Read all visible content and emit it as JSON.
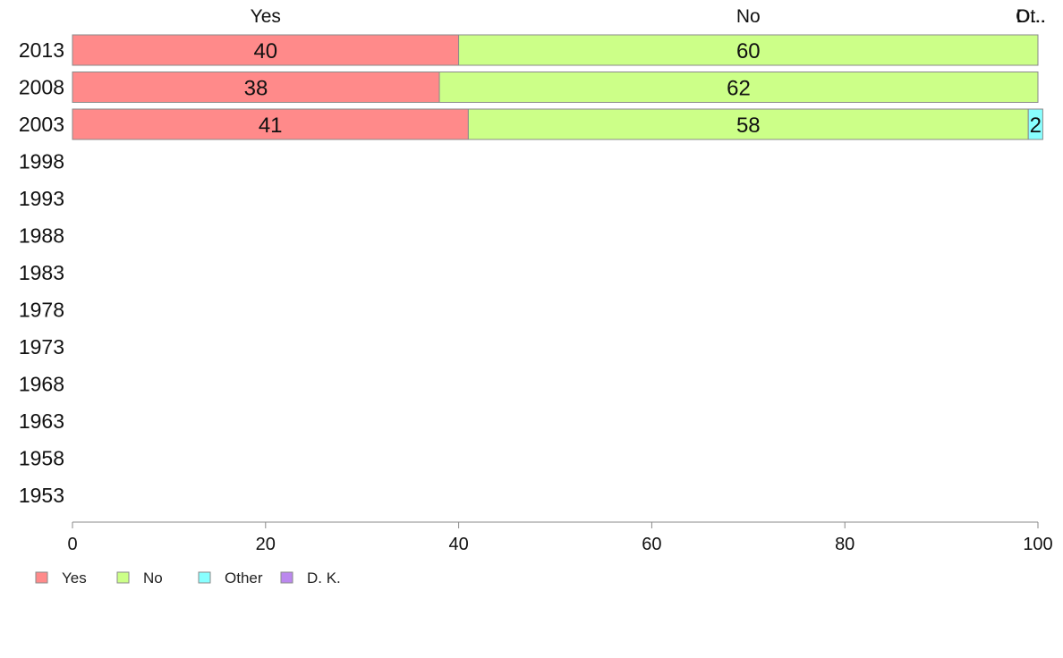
{
  "chart_data": {
    "type": "bar",
    "orientation": "horizontal",
    "stacked": true,
    "categories": [
      "2013",
      "2008",
      "2003",
      "1998",
      "1993",
      "1988",
      "1983",
      "1978",
      "1973",
      "1968",
      "1963",
      "1958",
      "1953"
    ],
    "series": [
      {
        "name": "Yes",
        "color": "#ff8a8a",
        "values": [
          40,
          38,
          41,
          null,
          null,
          null,
          null,
          null,
          null,
          null,
          null,
          null,
          null
        ]
      },
      {
        "name": "No",
        "color": "#ccff88",
        "values": [
          60,
          62,
          58,
          null,
          null,
          null,
          null,
          null,
          null,
          null,
          null,
          null,
          null
        ]
      },
      {
        "name": "Other",
        "color": "#88ffff",
        "values": [
          0,
          0,
          1.5,
          null,
          null,
          null,
          null,
          null,
          null,
          null,
          null,
          null,
          null
        ]
      },
      {
        "name": "D. K.",
        "color": "#bb88ee",
        "values": [
          0,
          0,
          0,
          null,
          null,
          null,
          null,
          null,
          null,
          null,
          null,
          null,
          null
        ]
      }
    ],
    "data_labels": [
      [
        "40",
        "60",
        "",
        ""
      ],
      [
        "38",
        "62",
        "",
        ""
      ],
      [
        "41",
        "58",
        "2",
        ""
      ]
    ],
    "top_labels": [
      "Yes",
      "No",
      "Ot..",
      "D..."
    ],
    "xlim": [
      0,
      100
    ],
    "xticks": [
      0,
      20,
      40,
      60,
      80,
      100
    ],
    "legend": [
      "Yes",
      "No",
      "Other",
      "D. K."
    ],
    "legend_position": "bottom-left",
    "grid": false
  }
}
